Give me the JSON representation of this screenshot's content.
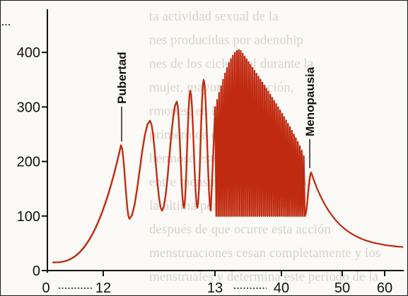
{
  "chart_data": {
    "type": "line",
    "title": "",
    "xlabel": "",
    "ylabel": "",
    "x_tick_labels": [
      "0",
      "12",
      "13",
      "40",
      "50",
      "60"
    ],
    "y_ticks": [
      0,
      100,
      200,
      300,
      400
    ],
    "ylim": [
      0,
      430
    ],
    "line_color": "#c02a10",
    "segments": {
      "childhood": {
        "x_start": "0",
        "x_end": "12",
        "y_start": 15,
        "y_end": 230
      },
      "puberty_cycles": {
        "peaks": [
          230,
          275,
          310,
          330,
          350
        ],
        "troughs": [
          95,
          110,
          115,
          115,
          110
        ]
      },
      "reproductive_cycles": {
        "x_start": "13",
        "x_end": "40",
        "cycle_count": 46,
        "peak_start": 300,
        "peak_max": 405,
        "peak_end": 210,
        "trough": 100
      },
      "menopause": {
        "peak": 180,
        "trough": 95
      },
      "postmenopause": {
        "x_start": "50",
        "x_end": "60",
        "y_start": 180,
        "y_end": 40
      }
    },
    "annotations": [
      {
        "label": "Pubertad",
        "at_value": 230
      },
      {
        "label": "Menopausia",
        "at_value": 180
      }
    ],
    "grid": false,
    "legend": "none"
  },
  "background_text_lines": [
    "ta actividad sexual de la",
    "nes producidas por adenohip",
    "nes de los ciclos del durante la",
    "mujer, mayor la ovulación,",
    "rmones, en la que se",
    "primero de él mucho mas",
    "hermoso este mente que hay",
    "entre menstruacion de un valo",
    "la última perdida de la fe",
    "después de que ocurre esta acción",
    "menstruaciones cesan completamente y los",
    "menstruales y determina este periodo de la"
  ]
}
